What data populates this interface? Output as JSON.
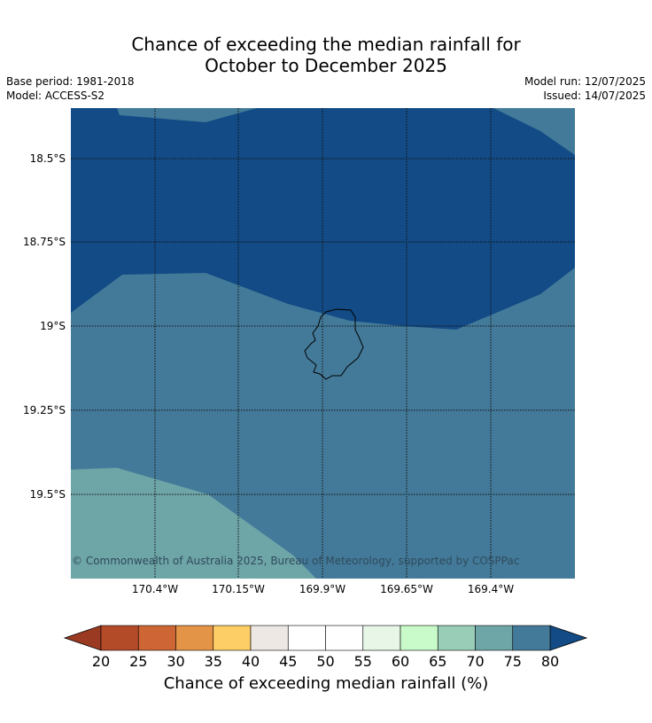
{
  "title_line1": "Chance of exceeding the median rainfall for",
  "title_line2": "October to December 2025",
  "base_period": "Base period: 1981-2018",
  "model": "Model: ACCESS-S2",
  "model_run": "Model run: 12/07/2025",
  "issued": "Issued: 14/07/2025",
  "copyright": "© Commonwealth of Australia 2025, Bureau of Meteorology, supported by COSPPac",
  "lat_labels": [
    "18.5°S",
    "18.75°S",
    "19°S",
    "19.25°S",
    "19.5°S"
  ],
  "lon_labels": [
    "170.4°W",
    "170.15°W",
    "169.9°W",
    "169.65°W",
    "169.4°W"
  ],
  "colorbar": {
    "label": "Chance of exceeding median rainfall (%)",
    "ticks": [
      "20",
      "25",
      "30",
      "35",
      "40",
      "45",
      "50",
      "55",
      "60",
      "65",
      "70",
      "75",
      "80"
    ],
    "under_color": "#9b3a22",
    "over_color": "#124b85",
    "colors": [
      "#b34a28",
      "#cd6634",
      "#e39446",
      "#fdcd66",
      "#ede8e4",
      "#ffffff",
      "#ffffff",
      "#e8f6e8",
      "#c9fac9",
      "#9acdb7",
      "#6ea5a7",
      "#437a99"
    ]
  },
  "map_colors": {
    "gt80": "#124b85",
    "c75_80": "#437a99",
    "c70_75": "#6ea5a7"
  }
}
